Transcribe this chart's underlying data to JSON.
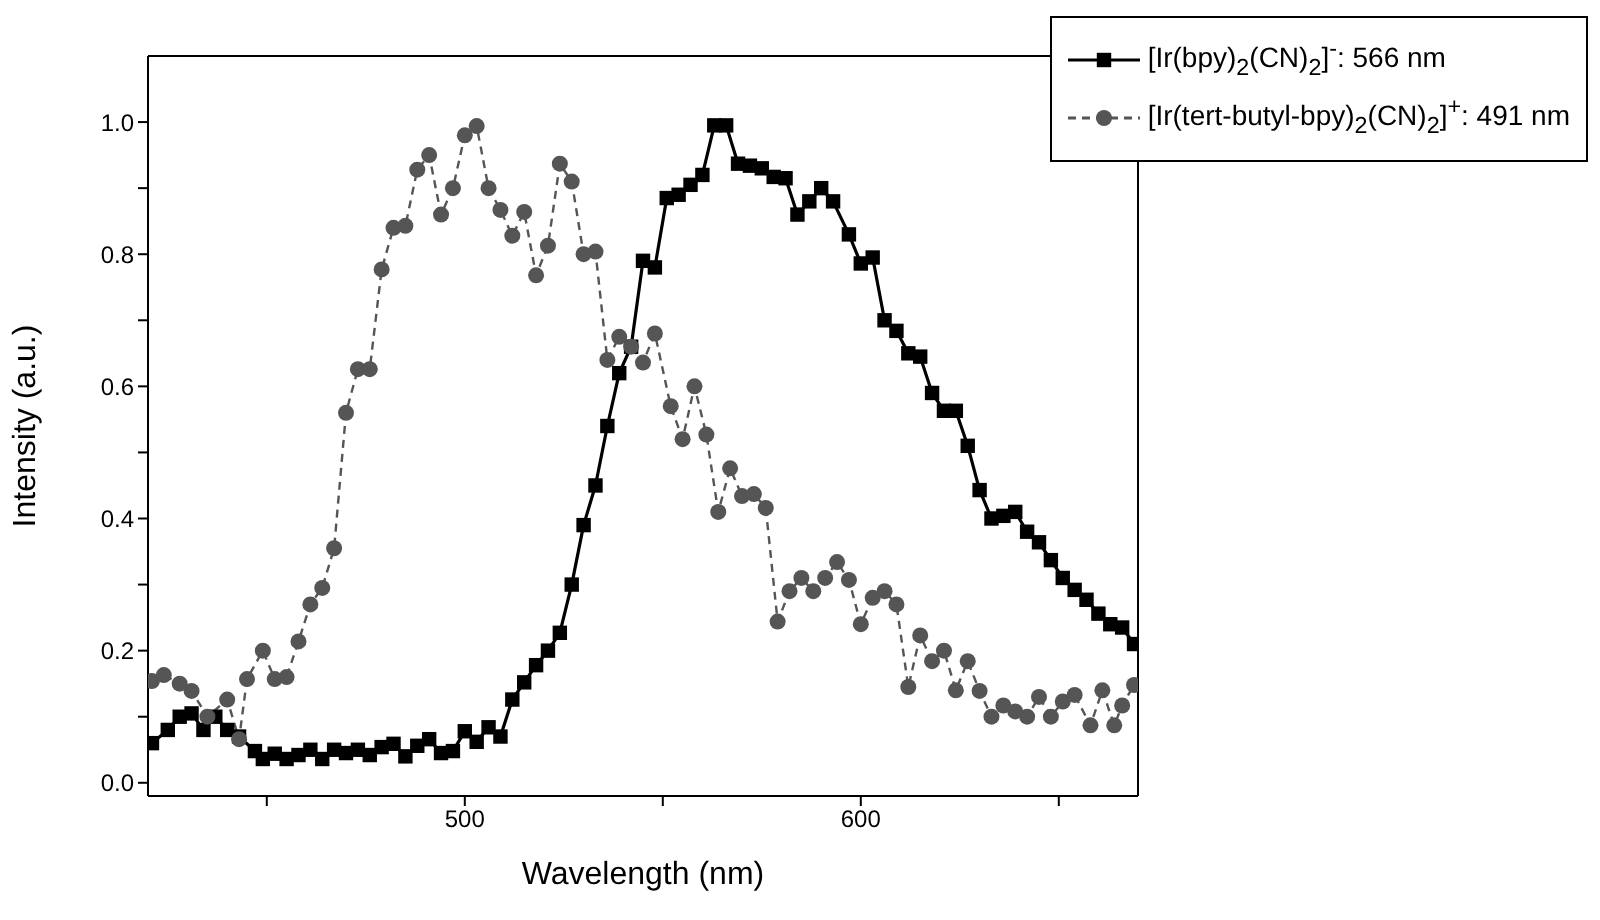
{
  "chart_data": {
    "type": "line",
    "xlabel": "Wavelength (nm)",
    "ylabel": "Intensity (a.u.)",
    "xlim": [
      420,
      670
    ],
    "xticks": [
      {
        "value": 450,
        "label": null
      },
      {
        "value": 500,
        "label": "500"
      },
      {
        "value": 550,
        "label": null
      },
      {
        "value": 600,
        "label": "600"
      },
      {
        "value": 650,
        "label": null
      }
    ],
    "ylim": [
      -0.02,
      1.1
    ],
    "yticks": [
      {
        "value": 0,
        "label": "0.0"
      },
      {
        "value": 0.1,
        "label": null
      },
      {
        "value": 0.2,
        "label": "0.2"
      },
      {
        "value": 0.3,
        "label": null
      },
      {
        "value": 0.4,
        "label": "0.4"
      },
      {
        "value": 0.5,
        "label": null
      },
      {
        "value": 0.6,
        "label": "0.6"
      },
      {
        "value": 0.7,
        "label": null
      },
      {
        "value": 0.8,
        "label": "0.8"
      },
      {
        "value": 0.9,
        "label": null
      },
      {
        "value": 1.0,
        "label": "1.0"
      }
    ],
    "grid": false,
    "legend": "top right",
    "series": [
      {
        "name": "[Ir(bpy)$_{2}$(CN)$_{2}$]$^{-}$: 566 nm",
        "color": "#000000",
        "marker": "square",
        "line_style": "solid",
        "x": [
          421,
          425,
          428,
          431,
          434,
          437,
          440,
          443,
          447,
          449,
          452,
          455,
          458,
          461,
          464,
          467,
          470,
          473,
          476,
          479,
          482,
          485,
          488,
          491,
          494,
          497,
          500,
          503,
          506,
          509,
          512,
          515,
          518,
          521,
          524,
          527,
          530,
          533,
          536,
          539,
          542,
          545,
          548,
          551,
          554,
          557,
          560,
          563,
          566,
          569,
          572,
          575,
          578,
          581,
          584,
          587,
          590,
          593,
          597,
          600,
          603,
          606,
          609,
          612,
          615,
          618,
          621,
          624,
          627,
          630,
          633,
          636,
          639,
          642,
          645,
          648,
          651,
          654,
          657,
          660,
          663,
          666,
          669
        ],
        "values": [
          0.06,
          0.08,
          0.1,
          0.105,
          0.08,
          0.1,
          0.08,
          0.07,
          0.048,
          0.036,
          0.044,
          0.036,
          0.042,
          0.05,
          0.036,
          0.05,
          0.045,
          0.05,
          0.042,
          0.054,
          0.059,
          0.04,
          0.056,
          0.066,
          0.045,
          0.048,
          0.078,
          0.062,
          0.084,
          0.07,
          0.126,
          0.152,
          0.178,
          0.2,
          0.227,
          0.3,
          0.39,
          0.45,
          0.54,
          0.62,
          0.66,
          0.79,
          0.78,
          0.885,
          0.89,
          0.905,
          0.92,
          0.995,
          0.995,
          0.937,
          0.934,
          0.93,
          0.917,
          0.915,
          0.86,
          0.88,
          0.9,
          0.88,
          0.83,
          0.786,
          0.795,
          0.7,
          0.684,
          0.65,
          0.645,
          0.59,
          0.563,
          0.563,
          0.51,
          0.443,
          0.4,
          0.404,
          0.41,
          0.38,
          0.364,
          0.337,
          0.31,
          0.292,
          0.277,
          0.256,
          0.24,
          0.235,
          0.21
        ]
      },
      {
        "name": "[Ir(tert-butyl-bpy)$_{2}$(CN)$_{2}$]$^{+}$: 491 nm",
        "color": "#555555",
        "marker": "circle",
        "line_style": "dashed",
        "x": [
          421,
          424,
          428,
          431,
          435,
          440,
          443,
          445,
          449,
          452,
          455,
          458,
          461,
          464,
          467,
          470,
          473,
          476,
          479,
          482,
          485,
          488,
          491,
          494,
          497,
          500,
          503,
          506,
          509,
          512,
          515,
          518,
          521,
          524,
          527,
          530,
          533,
          536,
          539,
          542,
          545,
          548,
          552,
          555,
          558,
          561,
          564,
          567,
          570,
          573,
          576,
          579,
          582,
          585,
          588,
          591,
          594,
          597,
          600,
          603,
          606,
          609,
          612,
          615,
          618,
          621,
          624,
          627,
          630,
          633,
          636,
          639,
          642,
          645,
          648,
          651,
          654,
          658,
          661,
          664,
          666,
          669
        ],
        "values": [
          0.154,
          0.163,
          0.15,
          0.139,
          0.1,
          0.126,
          0.066,
          0.157,
          0.2,
          0.157,
          0.16,
          0.214,
          0.27,
          0.295,
          0.355,
          0.56,
          0.626,
          0.626,
          0.777,
          0.84,
          0.843,
          0.928,
          0.95,
          0.86,
          0.9,
          0.98,
          0.994,
          0.9,
          0.867,
          0.828,
          0.864,
          0.768,
          0.813,
          0.937,
          0.91,
          0.8,
          0.804,
          0.64,
          0.675,
          0.66,
          0.636,
          0.68,
          0.57,
          0.52,
          0.6,
          0.527,
          0.41,
          0.476,
          0.434,
          0.437,
          0.416,
          0.244,
          0.29,
          0.31,
          0.29,
          0.31,
          0.334,
          0.307,
          0.24,
          0.28,
          0.29,
          0.27,
          0.145,
          0.223,
          0.184,
          0.2,
          0.14,
          0.184,
          0.139,
          0.1,
          0.117,
          0.108,
          0.1,
          0.13,
          0.1,
          0.123,
          0.133,
          0.087,
          0.14,
          0.087,
          0.117,
          0.148
        ]
      }
    ]
  }
}
